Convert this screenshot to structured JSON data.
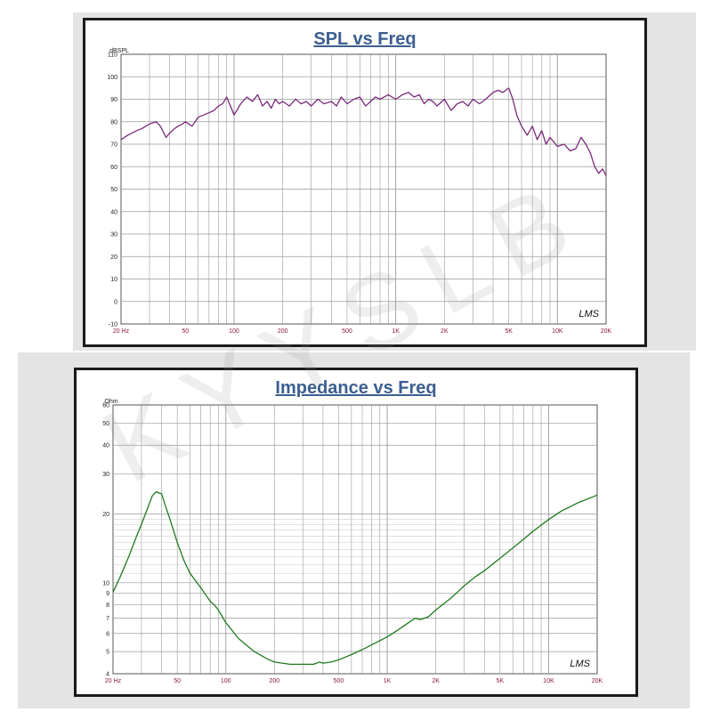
{
  "watermark": "KYYSLB",
  "chart_data": [
    {
      "type": "line",
      "title": "SPL vs Freq",
      "ylabel": "dBSPL",
      "xlabel": "",
      "x_scale": "log",
      "xlim": [
        20,
        20000
      ],
      "ylim": [
        -10,
        110
      ],
      "yticks": [
        -10,
        0,
        10,
        20,
        30,
        40,
        50,
        60,
        70,
        80,
        90,
        100,
        110
      ],
      "xticks": [
        20,
        50,
        100,
        200,
        500,
        1000,
        2000,
        5000,
        10000,
        20000
      ],
      "xtick_labels": [
        "20 Hz",
        "50",
        "100",
        "200",
        "500",
        "1K",
        "2K",
        "5K",
        "10K",
        "20K"
      ],
      "grid": true,
      "logo": "LMS",
      "color": "#7a2a7a",
      "series": [
        {
          "x": [
            20,
            22,
            25,
            27,
            30,
            33,
            35,
            38,
            40,
            43,
            45,
            48,
            50,
            55,
            60,
            65,
            70,
            75,
            80,
            85,
            90,
            95,
            100,
            110,
            120,
            130,
            140,
            150,
            160,
            170,
            180,
            190,
            200,
            220,
            240,
            260,
            280,
            300,
            330,
            360,
            400,
            430,
            460,
            500,
            550,
            600,
            650,
            700,
            750,
            800,
            900,
            1000,
            1100,
            1200,
            1300,
            1400,
            1500,
            1600,
            1700,
            1800,
            2000,
            2200,
            2400,
            2600,
            2800,
            3000,
            3300,
            3600,
            4000,
            4300,
            4600,
            5000,
            5300,
            5600,
            6000,
            6500,
            7000,
            7500,
            8000,
            8500,
            9000,
            10000,
            11000,
            12000,
            13000,
            14000,
            15000,
            16000,
            17000,
            18000,
            19000,
            20000
          ],
          "y": [
            72,
            74,
            76,
            77,
            79,
            80,
            78,
            73,
            75,
            77,
            78,
            79,
            80,
            78,
            82,
            83,
            84,
            85,
            87,
            88,
            91,
            87,
            83,
            88,
            91,
            89,
            92,
            87,
            89,
            86,
            90,
            88,
            89,
            87,
            90,
            88,
            89,
            87,
            90,
            88,
            89,
            87,
            91,
            88,
            90,
            91,
            87,
            89,
            91,
            90,
            92,
            90,
            92,
            93,
            91,
            92,
            88,
            90,
            89,
            87,
            90,
            85,
            88,
            89,
            87,
            90,
            88,
            90,
            93,
            94,
            93,
            95,
            90,
            83,
            78,
            74,
            78,
            72,
            76,
            70,
            73,
            69,
            70,
            67,
            68,
            73,
            70,
            66,
            60,
            57,
            59,
            56
          ]
        }
      ]
    },
    {
      "type": "line",
      "title": "Impedance vs Freq",
      "ylabel": "Ohm",
      "xlabel": "",
      "x_scale": "log",
      "y_scale": "log",
      "xlim": [
        20,
        20000
      ],
      "ylim": [
        4,
        60
      ],
      "yticks": [
        4,
        5,
        6,
        7,
        8,
        9,
        10,
        20,
        30,
        40,
        50,
        60
      ],
      "xticks": [
        20,
        50,
        100,
        200,
        500,
        1000,
        2000,
        5000,
        10000,
        20000
      ],
      "xtick_labels": [
        "20 Hz",
        "50",
        "100",
        "200",
        "500",
        "1K",
        "2K",
        "5K",
        "10K",
        "20K"
      ],
      "grid": true,
      "logo": "LMS",
      "color": "#1e7a1e",
      "series": [
        {
          "x": [
            20,
            22,
            25,
            28,
            30,
            33,
            35,
            37,
            40,
            42,
            45,
            50,
            55,
            60,
            70,
            80,
            85,
            90,
            100,
            120,
            150,
            180,
            200,
            250,
            300,
            350,
            380,
            400,
            450,
            500,
            600,
            700,
            800,
            1000,
            1200,
            1400,
            1500,
            1600,
            1800,
            2000,
            2500,
            3000,
            3500,
            4000,
            5000,
            6000,
            7000,
            8000,
            10000,
            12000,
            15000,
            20000
          ],
          "y": [
            9.1,
            10.5,
            13,
            16,
            18,
            21.5,
            24,
            25,
            24.5,
            22,
            19,
            15,
            12.5,
            11,
            9.5,
            8.3,
            8.0,
            7.6,
            6.7,
            5.7,
            5.0,
            4.65,
            4.5,
            4.4,
            4.4,
            4.4,
            4.5,
            4.45,
            4.5,
            4.6,
            4.85,
            5.1,
            5.35,
            5.8,
            6.3,
            6.8,
            7.0,
            6.9,
            7.1,
            7.6,
            8.6,
            9.7,
            10.6,
            11.3,
            12.8,
            14.2,
            15.5,
            16.8,
            18.9,
            20.6,
            22.3,
            24.2
          ]
        }
      ]
    }
  ]
}
